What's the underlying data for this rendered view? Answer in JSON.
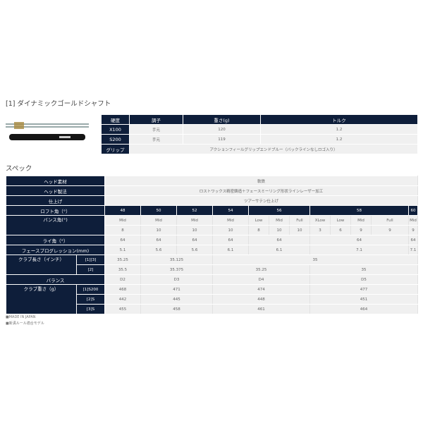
{
  "shaft_section": {
    "title": "[1] ダイナミックゴールドシャフト",
    "headers": [
      "硬度",
      "調子",
      "重さ(g)",
      "トルク"
    ],
    "rows": [
      [
        "X100",
        "手元",
        "120",
        "1.2"
      ],
      [
        "S200",
        "手元",
        "119",
        "1.2"
      ]
    ],
    "grip_label": "グリップ",
    "grip_value": "アクションフィールグリップエンドブルー（バックラインなしロゴ入り）"
  },
  "spec": {
    "title": "スペック",
    "head_material_label": "ヘッド素材",
    "head_material": "軟鉄",
    "head_method_label": "ヘッド製法",
    "head_method": "ロストワックス精密鋳造＋フェースミーリング形状ラインレーザー加工",
    "finish_label": "仕上げ",
    "finish": "ツアーサテン仕上げ",
    "loft_label": "ロフト角（°）",
    "lofts": [
      "48",
      "50",
      "52",
      "54",
      "56",
      "58",
      "60"
    ],
    "bounce_label": "バンス角(°)",
    "bounce_types": [
      "Mid",
      "Mid",
      "Mid",
      "Mid",
      "Low",
      "Mid",
      "Full",
      "XLow",
      "Low",
      "Mid",
      "Full",
      "Mid"
    ],
    "bounce_values": [
      "8",
      "10",
      "10",
      "10",
      "8",
      "10",
      "10",
      "3",
      "6",
      "9",
      "9",
      "9"
    ],
    "lie_label": "ライ角（°）",
    "lie": [
      "64",
      "64",
      "64",
      "64",
      "64",
      "64",
      "64"
    ],
    "fp_label": "フェースプログレッション(mm)",
    "fp": [
      "5.1",
      "5.6",
      "5.6",
      "6.1",
      "6.1",
      "7.1",
      "7.1"
    ],
    "length_label": "クラブ長さ（インチ）",
    "length_sub": [
      "[1][3]",
      "[2]"
    ],
    "length_13": [
      "35.25",
      "35.125",
      "35"
    ],
    "length_2": [
      "35.5",
      "35.375",
      "35.25",
      "35"
    ],
    "balance_label": "バランス",
    "balance": [
      "D2",
      "D3",
      "D4",
      "D5"
    ],
    "weight_label": "クラブ重さ（g）",
    "weight_sub": [
      "[1]S200",
      "[2]S",
      "[3]S"
    ],
    "weight_1": [
      "468",
      "471",
      "474",
      "477"
    ],
    "weight_2": [
      "442",
      "445",
      "448",
      "451"
    ],
    "weight_3": [
      "455",
      "458",
      "461",
      "464"
    ]
  },
  "footer": [
    "■MADE IN JAPAN",
    "■新溝ルール適合モデル"
  ]
}
